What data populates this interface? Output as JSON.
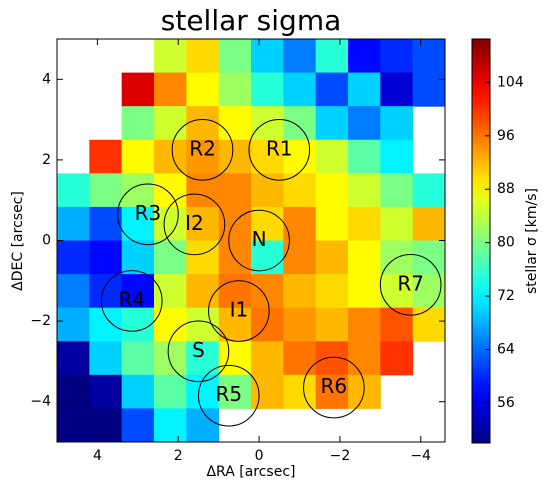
{
  "chart_data": {
    "type": "heatmap",
    "title": "stellar sigma",
    "x_label": "ΔRA [arcsec]",
    "y_label": "ΔDEC [arcsec]",
    "xlim": [
      5,
      -4.6
    ],
    "ylim": [
      -5,
      5
    ],
    "xticks": [
      4,
      2,
      0,
      {
        "value": -2,
        "label": "−2"
      },
      {
        "value": -4,
        "label": "−4"
      }
    ],
    "yticks": [
      4,
      2,
      0,
      {
        "value": -2,
        "label": "−2"
      },
      {
        "value": -4,
        "label": "−4"
      }
    ],
    "colormap": "jet",
    "colorbar": {
      "label": "stellar σ [km/s]",
      "lim": [
        50,
        110.5
      ],
      "ticks": [
        56,
        64,
        72,
        80,
        88,
        96,
        104
      ]
    },
    "z": [
      [
        null,
        null,
        null,
        85,
        90,
        80,
        70,
        65,
        75,
        58,
        60,
        62
      ],
      [
        null,
        null,
        105,
        95,
        88,
        82,
        75,
        70,
        62,
        70,
        55,
        62
      ],
      [
        null,
        null,
        80,
        85,
        92,
        88,
        85,
        80,
        70,
        65,
        70,
        null
      ],
      [
        null,
        100,
        88,
        92,
        94,
        92,
        90,
        88,
        85,
        78,
        72,
        null
      ],
      [
        75,
        80,
        82,
        88,
        95,
        95,
        92,
        90,
        88,
        85,
        80,
        75
      ],
      [
        68,
        62,
        72,
        85,
        92,
        95,
        90,
        95,
        88,
        90,
        85,
        92
      ],
      [
        60,
        58,
        70,
        80,
        90,
        95,
        75,
        95,
        92,
        88,
        82,
        80
      ],
      [
        65,
        60,
        58,
        85,
        92,
        96,
        95,
        92,
        90,
        88,
        85,
        82
      ],
      [
        68,
        72,
        75,
        88,
        85,
        92,
        96,
        94,
        92,
        95,
        98,
        90
      ],
      [
        52,
        70,
        78,
        82,
        75,
        88,
        92,
        96,
        98,
        95,
        100,
        null
      ],
      [
        50,
        52,
        70,
        78,
        72,
        80,
        92,
        90,
        96,
        92,
        null,
        null
      ],
      [
        50,
        50,
        62,
        72,
        68,
        null,
        null,
        null,
        null,
        null,
        null,
        null
      ]
    ],
    "regions": [
      {
        "label": "R1",
        "x": -0.5,
        "y": 2.25,
        "r": 0.75
      },
      {
        "label": "R2",
        "x": 1.4,
        "y": 2.25,
        "r": 0.75
      },
      {
        "label": "R3",
        "x": 2.75,
        "y": 0.65,
        "r": 0.75
      },
      {
        "label": "I2",
        "x": 1.6,
        "y": 0.4,
        "r": 0.75
      },
      {
        "label": "N",
        "x": 0,
        "y": 0,
        "r": 0.75
      },
      {
        "label": "R4",
        "x": 3.15,
        "y": -1.5,
        "r": 0.75
      },
      {
        "label": "I1",
        "x": 0.5,
        "y": -1.75,
        "r": 0.75
      },
      {
        "label": "S",
        "x": 1.5,
        "y": -2.75,
        "r": 0.75
      },
      {
        "label": "R5",
        "x": 0.75,
        "y": -3.85,
        "r": 0.75
      },
      {
        "label": "R6",
        "x": -1.85,
        "y": -3.65,
        "r": 0.75
      },
      {
        "label": "R7",
        "x": -3.75,
        "y": -1.1,
        "r": 0.75
      }
    ]
  }
}
